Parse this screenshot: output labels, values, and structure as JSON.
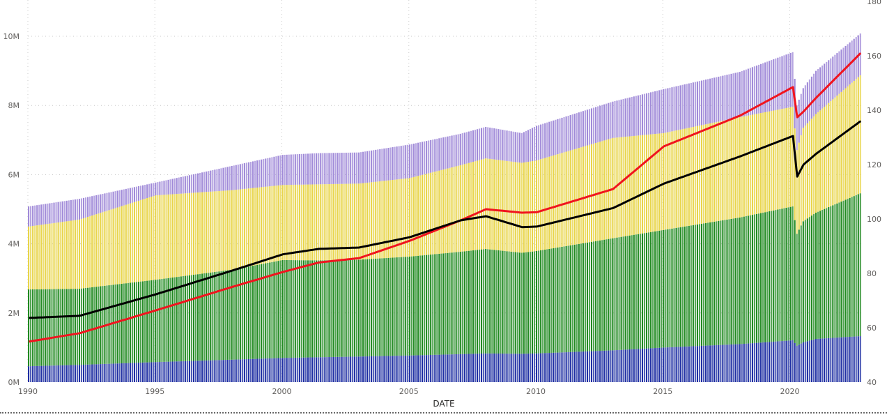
{
  "chart_data": {
    "type": "bar",
    "subtype": "stacked-column-with-secondary-lines",
    "xlabel": "DATE",
    "ylabel": "",
    "y2label": "",
    "x_ticks": [
      "1990",
      "1995",
      "2000",
      "2005",
      "2010",
      "2015",
      "2020"
    ],
    "y_ticks": [
      "0M",
      "2M",
      "4M",
      "6M",
      "8M",
      "10M"
    ],
    "y2_ticks": [
      "40",
      "60",
      "80",
      "100",
      "120",
      "140",
      "160",
      "180"
    ],
    "ylim": [
      0,
      11000000
    ],
    "y2lim": [
      40,
      180
    ],
    "xlim": [
      "1990-01",
      "2022-10"
    ],
    "grid": true,
    "legend": "none",
    "bar_frequency": "monthly",
    "dates": [
      "1990-01",
      "1992-01",
      "1995-01",
      "1998-01",
      "2000-01",
      "2001-06",
      "2003-01",
      "2005-01",
      "2007-01",
      "2008-01",
      "2009-06",
      "2010-01",
      "2013-01",
      "2015-01",
      "2018-01",
      "2020-02",
      "2020-04",
      "2020-07",
      "2021-01",
      "2022-10"
    ],
    "series": [
      {
        "kind": "bar",
        "color": "#1f2fa3",
        "values": [
          460000,
          500000,
          580000,
          650000,
          700000,
          720000,
          740000,
          770000,
          810000,
          830000,
          820000,
          830000,
          920000,
          1000000,
          1100000,
          1210000,
          1050000,
          1150000,
          1250000,
          1330000
        ]
      },
      {
        "kind": "bar",
        "color": "#218a21",
        "values": [
          2220000,
          2200000,
          2380000,
          2600000,
          2830000,
          2800000,
          2800000,
          2860000,
          2960000,
          3020000,
          2920000,
          2960000,
          3240000,
          3400000,
          3660000,
          3870000,
          3240000,
          3500000,
          3650000,
          4130000
        ]
      },
      {
        "kind": "bar",
        "color": "#e8d54a",
        "values": [
          1820000,
          2000000,
          2440000,
          2300000,
          2170000,
          2200000,
          2200000,
          2270000,
          2500000,
          2620000,
          2600000,
          2620000,
          2900000,
          2800000,
          2900000,
          2880000,
          2420000,
          2700000,
          2850000,
          3410000
        ]
      },
      {
        "kind": "bar",
        "color": "#a08ad8",
        "values": [
          580000,
          600000,
          370000,
          700000,
          870000,
          900000,
          900000,
          970000,
          910000,
          910000,
          860000,
          1000000,
          1050000,
          1270000,
          1310000,
          1580000,
          1290000,
          1150000,
          1250000,
          1210000
        ]
      },
      {
        "kind": "line",
        "axis": "secondary",
        "color": "#f0141e",
        "values": [
          54.9,
          58,
          66.4,
          75,
          80.5,
          84,
          85.6,
          92,
          99.5,
          103.6,
          102.3,
          102.5,
          111,
          126.7,
          138,
          148.5,
          137.4,
          139.5,
          144.6,
          161
        ]
      },
      {
        "kind": "line",
        "axis": "secondary",
        "color": "#000000",
        "values": [
          63.6,
          64.4,
          72.3,
          81,
          87,
          89,
          89.5,
          93.3,
          99.5,
          101,
          97,
          97.2,
          104,
          113,
          123,
          130.5,
          115.6,
          120,
          124,
          136
        ]
      }
    ]
  }
}
